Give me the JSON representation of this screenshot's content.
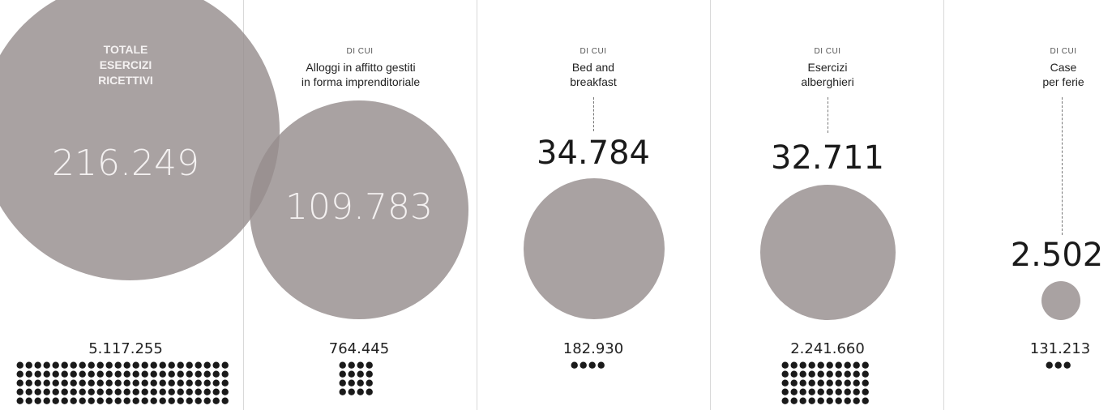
{
  "chart_data": {
    "type": "bubble",
    "categories": [
      {
        "id": "totale",
        "prefix": "",
        "label": "TOTALE\nESERCIZI\nRICETTIVI",
        "value": 216249,
        "value_label": "216.249",
        "beds_label": "5.117.255",
        "beds": 5117255
      },
      {
        "id": "alloggi",
        "prefix": "DI CUI",
        "label": "Alloggi in affitto gestiti\nin forma imprenditoriale",
        "value": 109783,
        "value_label": "109.783",
        "beds_label": "764.445",
        "beds": 764445
      },
      {
        "id": "bnb",
        "prefix": "DI CUI",
        "label": "Bed and\nbreakfast",
        "value": 34784,
        "value_label": "34.784",
        "beds_label": "182.930",
        "beds": 182930
      },
      {
        "id": "alberghieri",
        "prefix": "DI CUI",
        "label": "Esercizi\nalberghieri",
        "value": 32711,
        "value_label": "32.711",
        "beds_label": "2.241.660",
        "beds": 2241660
      },
      {
        "id": "ferie",
        "prefix": "DI CUI",
        "label": "Case\nper ferie",
        "value": 2502,
        "value_label": "2.502",
        "beds_label": "131.213",
        "beds": 131213
      }
    ]
  },
  "colors": {
    "bubble": "#968e8e",
    "dots": "#1a1a1a",
    "divider": "#d9d9d9"
  }
}
